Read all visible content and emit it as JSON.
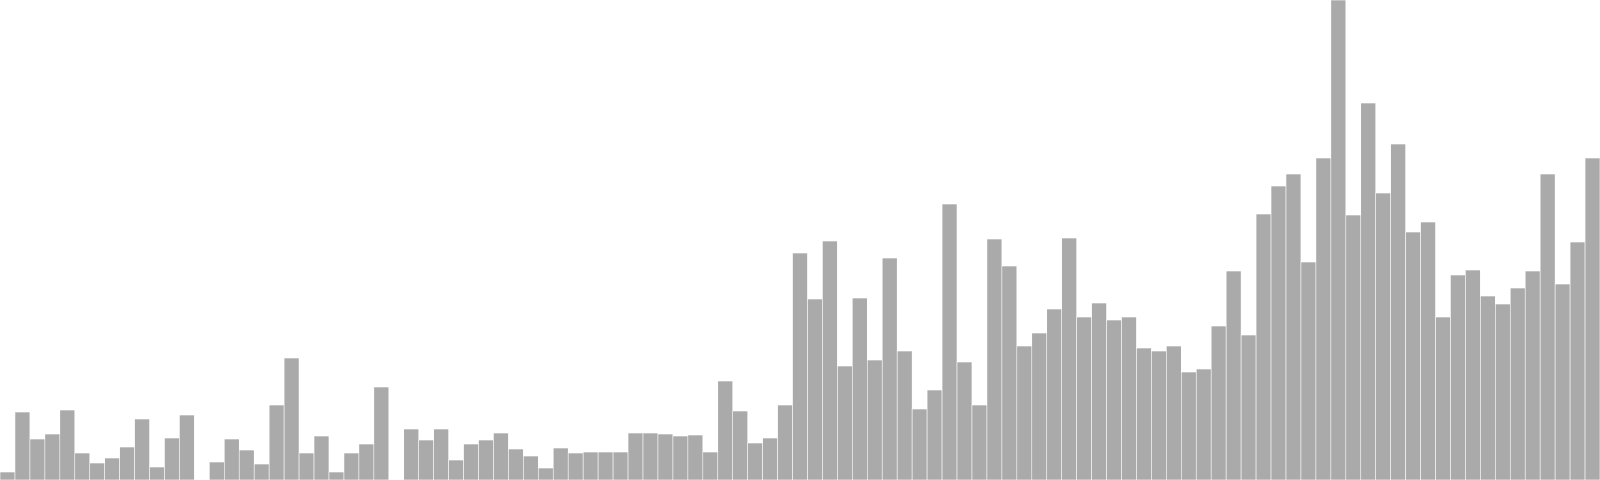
{
  "chart_data": {
    "type": "bar",
    "title": "",
    "xlabel": "",
    "ylabel": "",
    "grid": false,
    "legend": "none",
    "ylim": [
      0,
      480
    ],
    "colors": {
      "bar_fill": "#aaaaaa",
      "bar_edge": "#ffffff",
      "background": "#ffffff"
    },
    "values": [
      8,
      68,
      41,
      46,
      70,
      27,
      17,
      22,
      33,
      61,
      13,
      42,
      65,
      0,
      18,
      41,
      30,
      16,
      75,
      122,
      27,
      44,
      8,
      27,
      36,
      93,
      0,
      51,
      40,
      51,
      20,
      36,
      40,
      47,
      31,
      24,
      12,
      32,
      27,
      28,
      28,
      28,
      47,
      47,
      46,
      44,
      45,
      28,
      99,
      69,
      37,
      42,
      75,
      227,
      181,
      239,
      114,
      182,
      120,
      222,
      129,
      71,
      90,
      276,
      118,
      75,
      241,
      214,
      134,
      147,
      171,
      242,
      163,
      177,
      160,
      163,
      132,
      129,
      134,
      108,
      111,
      154,
      209,
      145,
      266,
      294,
      306,
      218,
      322,
      480,
      265,
      377,
      287,
      336,
      248,
      258,
      163,
      205,
      210,
      184,
      176,
      192,
      209,
      306,
      196,
      238,
      322
    ]
  }
}
